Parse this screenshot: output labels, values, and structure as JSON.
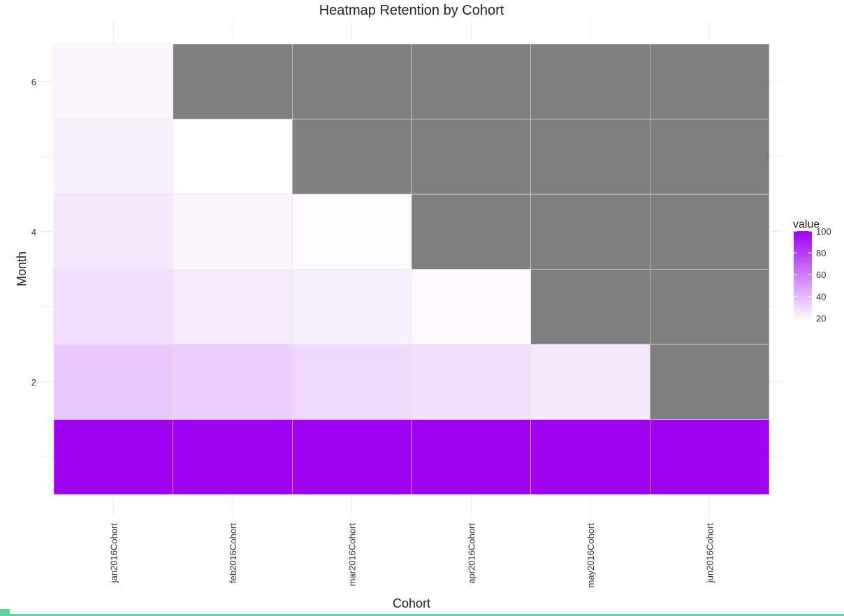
{
  "chart_data": {
    "type": "heatmap",
    "title": "Heatmap Retention by Cohort",
    "xlabel": "Cohort",
    "ylabel": "Month",
    "categories": [
      "jan2016Cohort",
      "feb2016Cohort",
      "mar2016Cohort",
      "apr2016Cohort",
      "may2016Cohort",
      "jun2016Cohort"
    ],
    "y": [
      1,
      2,
      3,
      4,
      5,
      6
    ],
    "y_ticks": [
      2,
      4,
      6
    ],
    "values": [
      [
        100,
        100,
        100,
        100,
        100,
        100
      ],
      [
        35,
        33,
        30,
        28,
        25,
        null
      ],
      [
        28,
        24,
        22,
        19,
        null,
        null
      ],
      [
        25,
        20,
        18,
        null,
        null,
        null
      ],
      [
        22,
        17,
        null,
        null,
        null,
        null
      ],
      [
        20,
        null,
        null,
        null,
        null,
        null
      ]
    ],
    "legend": {
      "title": "value",
      "ticks": [
        20,
        40,
        60,
        80,
        100
      ],
      "range": [
        17,
        100
      ],
      "low_color": "#ffffff",
      "high_color": "#a000f0",
      "position": "right"
    },
    "missing_color": "#7f7f7f",
    "grid": true
  }
}
